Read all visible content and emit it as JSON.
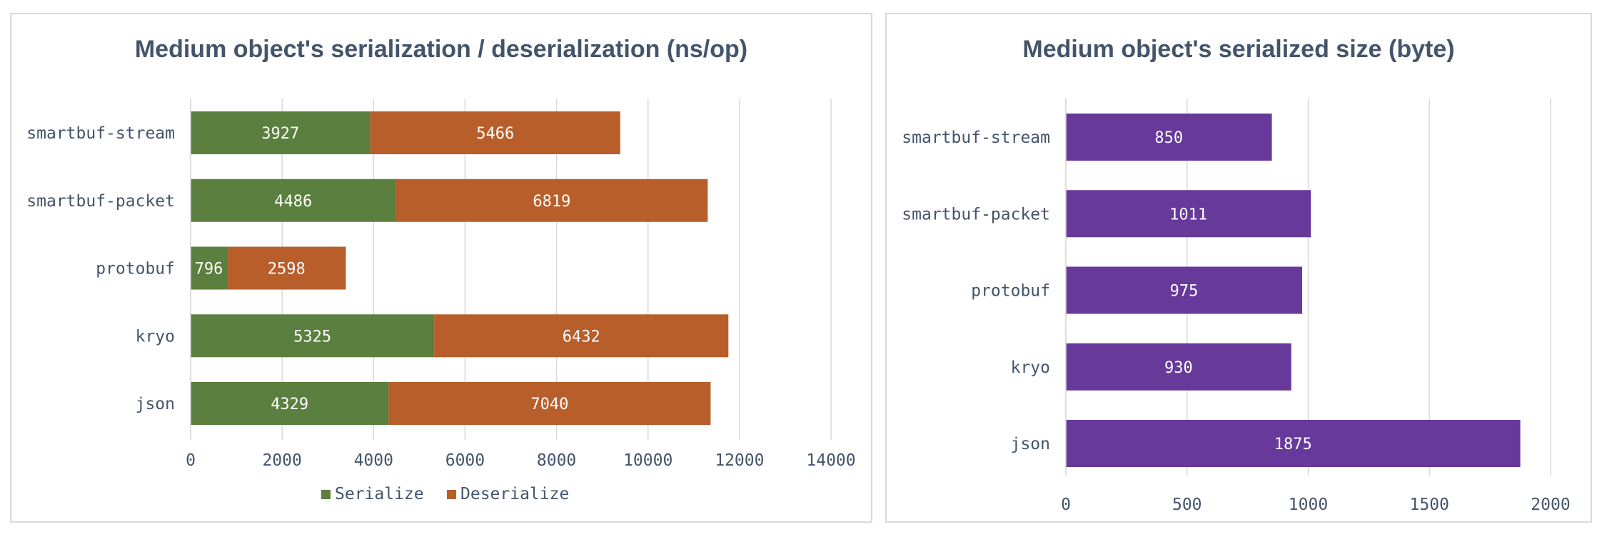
{
  "colors": {
    "serialize": "#5b7f3e",
    "deserialize": "#b85e2b",
    "size": "#66399a",
    "grid": "#d9d9d9",
    "text": "#44546a",
    "label": "#ffffff"
  },
  "chart_data": [
    {
      "type": "bar",
      "orientation": "horizontal",
      "stacked": true,
      "title": "Medium object's serialization / deserialization (ns/op)",
      "categories": [
        "smartbuf-stream",
        "smartbuf-packet",
        "protobuf",
        "kryo",
        "json"
      ],
      "series": [
        {
          "name": "Serialize",
          "values": [
            3927,
            4486,
            796,
            5325,
            4329
          ]
        },
        {
          "name": "Deserialize",
          "values": [
            5466,
            6819,
            2598,
            6432,
            7040
          ]
        }
      ],
      "xlim": [
        0,
        14000
      ],
      "xticks": [
        "0",
        "2000",
        "4000",
        "6000",
        "8000",
        "10000",
        "12000",
        "14000"
      ],
      "grid": true,
      "legend": "bottom"
    },
    {
      "type": "bar",
      "orientation": "horizontal",
      "stacked": false,
      "title": "Medium object's serialized size (byte)",
      "categories": [
        "smartbuf-stream",
        "smartbuf-packet",
        "protobuf",
        "kryo",
        "json"
      ],
      "values": [
        850,
        1011,
        975,
        930,
        1875
      ],
      "xlim": [
        0,
        2000
      ],
      "xticks": [
        "0",
        "500",
        "1000",
        "1500",
        "2000"
      ],
      "grid": true,
      "legend": "none"
    }
  ]
}
